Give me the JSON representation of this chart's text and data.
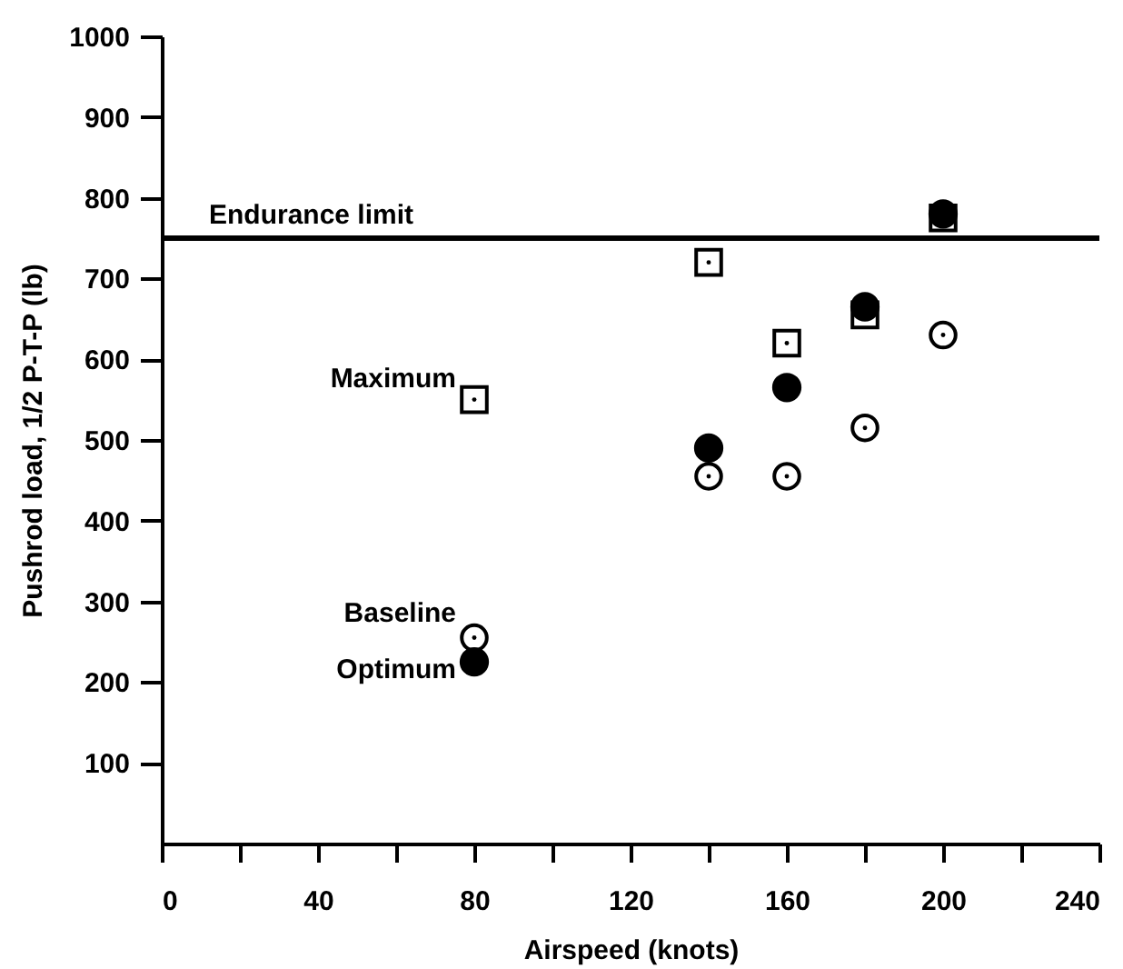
{
  "chart_data": {
    "type": "scatter",
    "xlabel": "Airspeed (knots)",
    "ylabel": "Pushrod load, 1/2 P-T-P (lb)",
    "xlim": [
      0,
      240
    ],
    "xticks": [
      0,
      {
        "value": 20,
        "label": null
      },
      40,
      {
        "value": 60,
        "label": null
      },
      80,
      {
        "value": 100,
        "label": null
      },
      120,
      {
        "value": 140,
        "label": null
      },
      160,
      {
        "value": 180,
        "label": null
      },
      200,
      {
        "value": 220,
        "label": null
      },
      240
    ],
    "ylim": [
      0,
      1000
    ],
    "yticks": [
      100,
      200,
      300,
      400,
      500,
      600,
      700,
      800,
      900,
      1000
    ],
    "grid": false,
    "legend": false,
    "series": [
      {
        "name": "Maximum",
        "color": "#000000",
        "marker": "square",
        "x": [
          80,
          140,
          160,
          180,
          200
        ],
        "values": [
          550,
          720,
          620,
          655,
          775
        ]
      },
      {
        "name": "Baseline",
        "color": "#000000",
        "marker": "circle",
        "x": [
          80,
          140,
          160,
          180,
          200
        ],
        "values": [
          255,
          455,
          455,
          515,
          630
        ]
      },
      {
        "name": "Optimum",
        "color": "#000000",
        "marker": "circle",
        "x": [
          80,
          140,
          160,
          180,
          200
        ],
        "values": [
          225,
          490,
          565,
          665,
          780
        ]
      }
    ],
    "ref_lines": [
      {
        "axis": "y",
        "value": 750,
        "label": "Endurance limit",
        "color": "#000000"
      }
    ]
  }
}
